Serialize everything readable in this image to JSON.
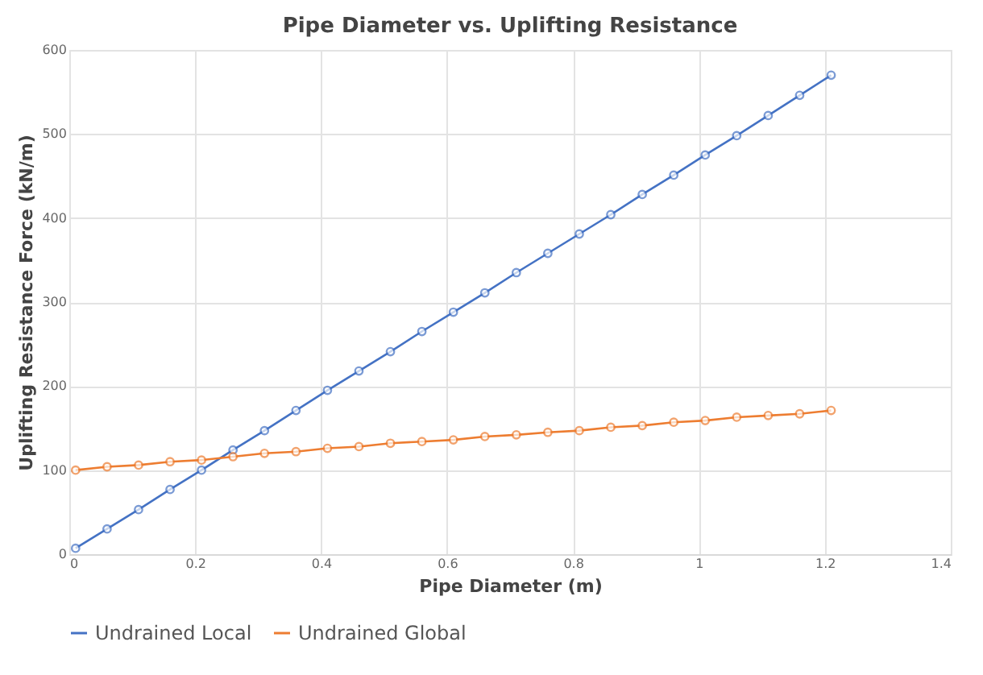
{
  "chart_data": {
    "type": "line",
    "title": "Pipe Diameter vs. Uplifting Resistance",
    "xlabel": "Pipe Diameter (m)",
    "ylabel": "Uplifting Resistance Force (kN/m)",
    "x": [
      0.01,
      0.06,
      0.11,
      0.16,
      0.21,
      0.26,
      0.31,
      0.36,
      0.41,
      0.46,
      0.51,
      0.56,
      0.61,
      0.66,
      0.71,
      0.76,
      0.81,
      0.86,
      0.91,
      0.96,
      1.01,
      1.06,
      1.11,
      1.16,
      1.21
    ],
    "series": [
      {
        "name": "Undrained Local",
        "color": "#4472c4",
        "values": [
          7,
          30,
          53,
          77,
          100,
          124,
          147,
          171,
          195,
          218,
          241,
          265,
          288,
          311,
          335,
          358,
          381,
          404,
          428,
          451,
          475,
          498,
          522,
          546,
          570
        ]
      },
      {
        "name": "Undrained Global",
        "color": "#ed7d31",
        "values": [
          100,
          104,
          106,
          110,
          112,
          116,
          120,
          122,
          126,
          128,
          132,
          134,
          136,
          140,
          142,
          145,
          147,
          151,
          153,
          157,
          159,
          163,
          165,
          167,
          171
        ]
      }
    ],
    "xlim": [
      0,
      1.4
    ],
    "xticks": [
      0,
      0.2,
      0.4,
      0.6,
      0.8,
      1,
      1.2,
      1.4
    ],
    "ylim": [
      0,
      600
    ],
    "yticks": [
      0,
      100,
      200,
      300,
      400,
      500,
      600
    ],
    "grid": true,
    "legend": "bottom",
    "marker": "circle",
    "line_style": "solid"
  }
}
